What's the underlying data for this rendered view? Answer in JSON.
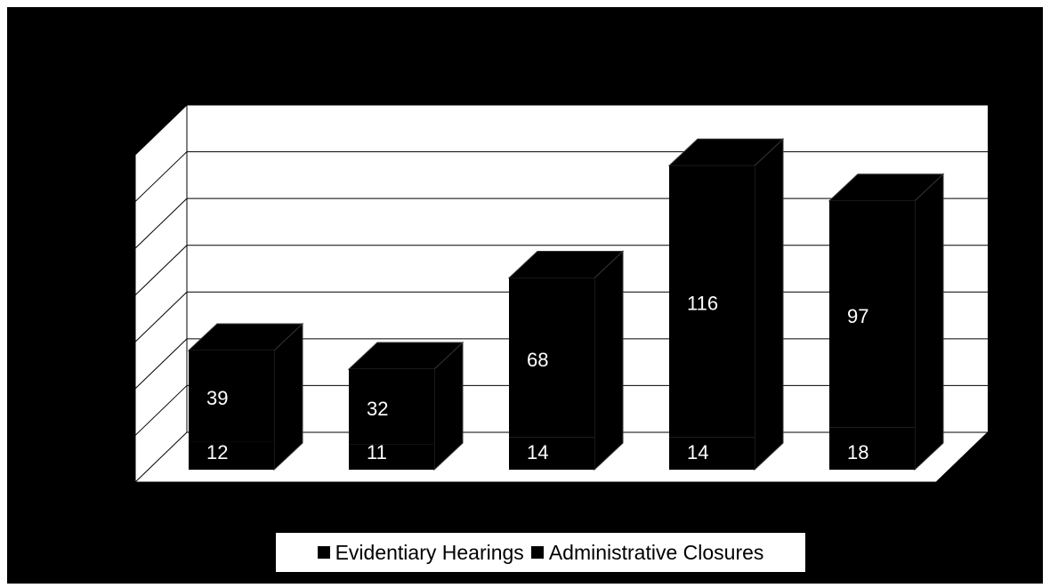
{
  "chart_data": {
    "type": "bar",
    "stacked": true,
    "style": "3d-column",
    "categories": [
      "",
      "",
      "",
      "",
      ""
    ],
    "series": [
      {
        "name": "Evidentiary Hearings",
        "values": [
          12,
          11,
          14,
          14,
          18
        ],
        "color": "#000000"
      },
      {
        "name": "Administrative Closures",
        "values": [
          39,
          32,
          68,
          116,
          97
        ],
        "color": "#000000"
      }
    ],
    "gridlines": true,
    "legend_position": "bottom",
    "background": "#000000",
    "plot_background": "#ffffff",
    "label_color": "#ffffff"
  },
  "legend": {
    "items": [
      {
        "label": "Evidentiary Hearings"
      },
      {
        "label": "Administrative Closures"
      }
    ]
  }
}
